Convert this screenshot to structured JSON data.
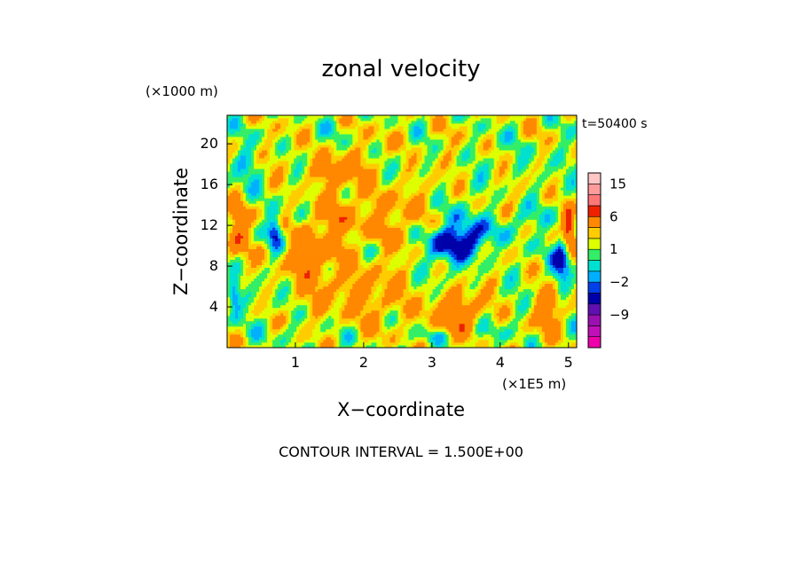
{
  "chart_data": {
    "type": "heatmap",
    "title": "zonal velocity",
    "xlabel": "X−coordinate",
    "ylabel": "Z−coordinate",
    "x_scale_label": "(×1E5 m)",
    "y_scale_label": "(×1000 m)",
    "time_label": "t=50400 s",
    "contour_interval_label": "CONTOUR INTERVAL = 1.500E+00",
    "xlim": [
      0,
      5.12
    ],
    "ylim": [
      0,
      22.8
    ],
    "x_ticks": [
      {
        "value": 1,
        "label": "1"
      },
      {
        "value": 2,
        "label": "2"
      },
      {
        "value": 3,
        "label": "3"
      },
      {
        "value": 4,
        "label": "4"
      },
      {
        "value": 5,
        "label": "5"
      }
    ],
    "y_ticks": [
      {
        "value": 4,
        "label": "4"
      },
      {
        "value": 8,
        "label": "8"
      },
      {
        "value": 12,
        "label": "12"
      },
      {
        "value": 16,
        "label": "16"
      },
      {
        "value": 20,
        "label": "20"
      }
    ],
    "colorbar": {
      "levels": [
        {
          "min": -18,
          "max": -15,
          "color": "#ee00aa"
        },
        {
          "min": -15,
          "max": -12,
          "color": "#c010b8"
        },
        {
          "min": -12,
          "max": -9,
          "color": "#9a10b0"
        },
        {
          "min": -9,
          "max": -6,
          "color": "#6010b0"
        },
        {
          "min": -6,
          "max": -3,
          "color": "#0000aa"
        },
        {
          "min": -3,
          "max": -2,
          "color": "#0040e8"
        },
        {
          "min": -2,
          "max": -1,
          "color": "#00b0ff"
        },
        {
          "min": -1,
          "max": 0,
          "color": "#00e0d0"
        },
        {
          "min": 0,
          "max": 1,
          "color": "#33ee66"
        },
        {
          "min": 1,
          "max": 2,
          "color": "#ddff00"
        },
        {
          "min": 2,
          "max": 3,
          "color": "#ffcc00"
        },
        {
          "min": 3,
          "max": 6,
          "color": "#ff8800"
        },
        {
          "min": 6,
          "max": 9,
          "color": "#ee2200"
        },
        {
          "min": 9,
          "max": 12,
          "color": "#ff7777"
        },
        {
          "min": 12,
          "max": 15,
          "color": "#ff9b9b"
        },
        {
          "min": 15,
          "max": 18,
          "color": "#ffc6c6"
        }
      ],
      "tick_labels": [
        {
          "value": -9,
          "label": "−9"
        },
        {
          "value": -2,
          "label": "−2"
        },
        {
          "value": 1,
          "label": "1"
        },
        {
          "value": 6,
          "label": "6"
        },
        {
          "value": 15,
          "label": "15"
        }
      ]
    },
    "background_value": 1.5,
    "features": [
      {
        "x": 3.6,
        "z": 10.8,
        "sx": 0.28,
        "sz": 1.6,
        "value": -4.5
      },
      {
        "x": 3.3,
        "z": 10.5,
        "sx": 0.5,
        "sz": 3.0,
        "value": -1.8
      },
      {
        "x": 3.1,
        "z": 10.0,
        "sx": 0.25,
        "sz": 1.5,
        "value": -2.5
      },
      {
        "x": 4.9,
        "z": 8.5,
        "sx": 0.14,
        "sz": 2.5,
        "value": -5.0
      },
      {
        "x": 5.0,
        "z": 12.0,
        "sx": 0.08,
        "sz": 1.8,
        "value": 7.0
      },
      {
        "x": 0.7,
        "z": 11.5,
        "sx": 0.1,
        "sz": 1.5,
        "value": -5.0
      },
      {
        "x": 0.1,
        "z": 5.0,
        "sx": 0.1,
        "sz": 1.8,
        "value": -4.5
      },
      {
        "x": 0.15,
        "z": 12.0,
        "sx": 0.15,
        "sz": 2.5,
        "value": 4.0
      },
      {
        "x": 1.6,
        "z": 17.5,
        "sx": 0.35,
        "sz": 1.6,
        "value": 3.5
      },
      {
        "x": 1.5,
        "z": 12.0,
        "sx": 0.5,
        "sz": 3.0,
        "value": 2.5
      },
      {
        "x": 2.4,
        "z": 13.0,
        "sx": 0.4,
        "sz": 3.0,
        "value": 2.5
      },
      {
        "x": 2.6,
        "z": 21.0,
        "sx": 0.8,
        "sz": 1.5,
        "value": -0.2
      },
      {
        "x": 3.3,
        "z": 3.5,
        "sx": 0.45,
        "sz": 2.0,
        "value": 3.5
      },
      {
        "x": 3.8,
        "z": 1.5,
        "sx": 0.25,
        "sz": 1.0,
        "value": -1.0
      },
      {
        "x": 3.0,
        "z": 1.2,
        "sx": 0.2,
        "sz": 0.7,
        "value": -1.5
      },
      {
        "x": 4.3,
        "z": 12.5,
        "sx": 0.2,
        "sz": 1.2,
        "value": -2.5
      },
      {
        "x": 0.5,
        "z": 14.5,
        "sx": 0.3,
        "sz": 2.0,
        "value": -0.8
      },
      {
        "x": 0.3,
        "z": 17.5,
        "sx": 0.2,
        "sz": 2.0,
        "value": -1.5
      },
      {
        "x": 4.4,
        "z": 18.5,
        "sx": 0.35,
        "sz": 2.0,
        "value": -1.0
      },
      {
        "x": 1.9,
        "z": 5.5,
        "sx": 0.6,
        "sz": 3.0,
        "value": 2.5
      },
      {
        "x": 2.5,
        "z": 20.5,
        "sx": 0.3,
        "sz": 1.5,
        "value": 1.0
      },
      {
        "x": 0.9,
        "z": 1.5,
        "sx": 0.2,
        "sz": 1.0,
        "value": -1.5
      },
      {
        "x": 4.7,
        "z": 4.0,
        "sx": 0.2,
        "sz": 2.0,
        "value": 3.0
      },
      {
        "x": 1.1,
        "z": 8.5,
        "sx": 0.3,
        "sz": 2.0,
        "value": 3.0
      }
    ]
  }
}
